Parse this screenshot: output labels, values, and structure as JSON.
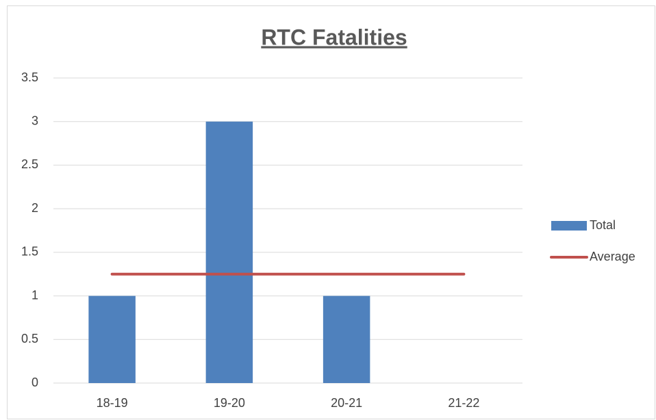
{
  "chart_data": {
    "type": "bar",
    "title": "RTC Fatalities",
    "categories": [
      "18-19",
      "19-20",
      "20-21",
      "21-22"
    ],
    "series": [
      {
        "name": "Total",
        "type": "bar",
        "color": "#4f81bd",
        "values": [
          1,
          3,
          1,
          0
        ]
      },
      {
        "name": "Average",
        "type": "line",
        "color": "#c0504d",
        "values": [
          1.25,
          1.25,
          1.25,
          1.25
        ]
      }
    ],
    "ylim": [
      0,
      3.5
    ],
    "yticks": [
      0,
      0.5,
      1,
      1.5,
      2,
      2.5,
      3,
      3.5
    ],
    "grid": true,
    "legend": "right"
  }
}
